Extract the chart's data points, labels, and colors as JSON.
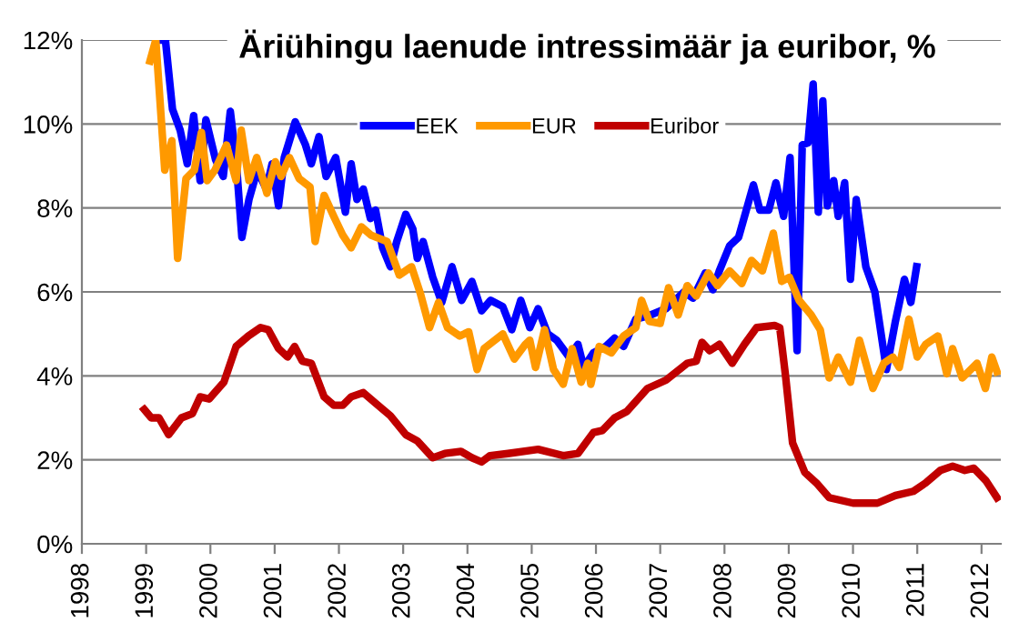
{
  "chart_data": {
    "type": "line",
    "title": "Äriühingu laenude intressimäär ja euribor, %",
    "xlim": [
      1998,
      2012.3
    ],
    "xticks": [
      1998,
      1999,
      2000,
      2001,
      2002,
      2003,
      2004,
      2005,
      2006,
      2007,
      2008,
      2009,
      2010,
      2011,
      2012
    ],
    "ylim": [
      0,
      12
    ],
    "yticks": [
      {
        "value": 0,
        "label": "0%"
      },
      {
        "value": 2,
        "label": "2%"
      },
      {
        "value": 4,
        "label": "4%"
      },
      {
        "value": 6,
        "label": "6%"
      },
      {
        "value": 8,
        "label": "8%"
      },
      {
        "value": 10,
        "label": "10%"
      },
      {
        "value": 12,
        "label": "12%"
      }
    ],
    "grid": "y",
    "legend": "top",
    "marker": "none",
    "line_style": "solid",
    "series": [
      {
        "name": "EEK",
        "color": "#0000ff",
        "x": [
          1999.15,
          1999.3,
          1999.41,
          1999.53,
          1999.64,
          1999.74,
          1999.84,
          1999.93,
          2000.08,
          2000.2,
          2000.31,
          2000.4,
          2000.49,
          2000.6,
          2000.73,
          2000.87,
          2000.96,
          2001.06,
          2001.15,
          2001.32,
          2001.48,
          2001.57,
          2001.69,
          2001.8,
          2001.95,
          2002.1,
          2002.19,
          2002.28,
          2002.38,
          2002.49,
          2002.57,
          2002.68,
          2002.8,
          2002.9,
          2003.04,
          2003.15,
          2003.22,
          2003.31,
          2003.46,
          2003.6,
          2003.76,
          2003.91,
          2004.07,
          2004.22,
          2004.36,
          2004.55,
          2004.69,
          2004.83,
          2004.97,
          2005.1,
          2005.25,
          2005.39,
          2005.58,
          2005.72,
          2005.81,
          2005.96,
          2006.15,
          2006.29,
          2006.43,
          2006.62,
          2006.85,
          2007.09,
          2007.37,
          2007.51,
          2007.7,
          2007.82,
          2007.92,
          2008.08,
          2008.22,
          2008.45,
          2008.55,
          2008.69,
          2008.8,
          2008.92,
          2009.02,
          2009.13,
          2009.21,
          2009.3,
          2009.38,
          2009.46,
          2009.53,
          2009.6,
          2009.7,
          2009.77,
          2009.87,
          2009.96,
          2010.05,
          2010.2,
          2010.34,
          2010.52,
          2010.66,
          2010.8,
          2010.9,
          2010.99
        ],
        "values": [
          12.0,
          12.0,
          10.35,
          9.85,
          9.05,
          10.2,
          8.65,
          10.1,
          9.15,
          8.75,
          10.3,
          9.15,
          7.3,
          8.2,
          8.9,
          8.45,
          9.05,
          8.05,
          9.2,
          10.05,
          9.5,
          9.05,
          9.7,
          8.75,
          9.2,
          7.9,
          9.05,
          8.2,
          8.45,
          7.75,
          7.95,
          7.05,
          6.6,
          7.2,
          7.85,
          7.5,
          6.8,
          7.2,
          6.35,
          5.75,
          6.6,
          5.8,
          6.25,
          5.55,
          5.8,
          5.65,
          5.1,
          5.8,
          5.15,
          5.6,
          5.0,
          4.85,
          4.45,
          4.75,
          4.2,
          4.55,
          4.7,
          4.9,
          4.7,
          5.35,
          5.45,
          5.6,
          6.0,
          5.85,
          6.45,
          6.05,
          6.5,
          7.1,
          7.3,
          8.55,
          7.95,
          7.95,
          8.6,
          7.8,
          9.2,
          4.6,
          9.5,
          9.55,
          10.95,
          7.9,
          10.55,
          8.05,
          8.65,
          7.8,
          8.6,
          6.3,
          8.2,
          6.6,
          6.0,
          4.15,
          5.3,
          6.3,
          5.75,
          6.6
        ]
      },
      {
        "name": "EUR",
        "color": "#ff9900",
        "x": [
          1999.06,
          1999.15,
          1999.29,
          1999.4,
          1999.49,
          1999.62,
          1999.75,
          1999.86,
          1999.95,
          2000.07,
          2000.25,
          2000.4,
          2000.48,
          2000.6,
          2000.72,
          2000.88,
          2001.01,
          2001.1,
          2001.23,
          2001.38,
          2001.55,
          2001.63,
          2001.77,
          2001.92,
          2002.06,
          2002.19,
          2002.35,
          2002.5,
          2002.75,
          2002.94,
          2003.13,
          2003.27,
          2003.41,
          2003.55,
          2003.69,
          2003.88,
          2004.02,
          2004.15,
          2004.26,
          2004.55,
          2004.73,
          2004.9,
          2004.97,
          2005.06,
          2005.2,
          2005.34,
          2005.49,
          2005.63,
          2005.77,
          2005.87,
          2005.92,
          2006.05,
          2006.24,
          2006.43,
          2006.62,
          2006.71,
          2006.83,
          2007.0,
          2007.13,
          2007.28,
          2007.42,
          2007.56,
          2007.75,
          2007.89,
          2008.08,
          2008.27,
          2008.42,
          2008.59,
          2008.76,
          2008.89,
          2009.01,
          2009.16,
          2009.35,
          2009.49,
          2009.63,
          2009.77,
          2009.96,
          2010.1,
          2010.31,
          2010.48,
          2010.62,
          2010.72,
          2010.87,
          2011.0,
          2011.13,
          2011.32,
          2011.46,
          2011.55,
          2011.7,
          2011.93,
          2012.06,
          2012.16,
          2012.24
        ],
        "values": [
          11.5,
          12.0,
          8.9,
          9.6,
          6.8,
          8.7,
          8.9,
          9.8,
          8.65,
          8.9,
          9.5,
          8.65,
          9.85,
          8.65,
          9.2,
          8.35,
          9.1,
          8.75,
          9.2,
          8.7,
          8.5,
          7.2,
          8.3,
          7.8,
          7.35,
          7.05,
          7.55,
          7.35,
          7.2,
          6.4,
          6.6,
          5.95,
          5.15,
          5.75,
          5.15,
          4.95,
          5.05,
          4.15,
          4.65,
          5.0,
          4.4,
          4.75,
          4.85,
          4.2,
          5.1,
          4.15,
          3.8,
          4.65,
          3.85,
          4.3,
          3.8,
          4.7,
          4.55,
          4.95,
          5.15,
          5.8,
          5.3,
          5.25,
          6.1,
          5.45,
          6.15,
          5.9,
          6.45,
          6.15,
          6.5,
          6.2,
          6.75,
          6.5,
          7.4,
          6.25,
          6.35,
          5.8,
          5.45,
          5.1,
          3.95,
          4.45,
          3.85,
          4.85,
          3.7,
          4.3,
          4.45,
          4.2,
          5.35,
          4.45,
          4.75,
          4.95,
          4.05,
          4.65,
          3.95,
          4.3,
          3.7,
          4.45,
          4.1
        ]
      },
      {
        "name": "Euribor",
        "color": "#c00000",
        "x": [
          1998.97,
          1999.08,
          1999.2,
          1999.35,
          1999.55,
          1999.72,
          1999.84,
          1999.98,
          2000.21,
          2000.4,
          2000.59,
          2000.78,
          2000.9,
          2001.06,
          2001.2,
          2001.31,
          2001.43,
          2001.57,
          2001.77,
          2001.92,
          2002.06,
          2002.19,
          2002.38,
          2002.57,
          2002.8,
          2003.04,
          2003.22,
          2003.46,
          2003.65,
          2003.9,
          2004.07,
          2004.22,
          2004.35,
          2004.63,
          2005.1,
          2005.49,
          2005.72,
          2005.96,
          2006.1,
          2006.29,
          2006.48,
          2006.8,
          2007.09,
          2007.42,
          2007.56,
          2007.65,
          2007.77,
          2007.92,
          2008.12,
          2008.31,
          2008.5,
          2008.78,
          2008.86,
          2008.95,
          2009.06,
          2009.25,
          2009.43,
          2009.63,
          2010.0,
          2010.38,
          2010.66,
          2010.94,
          2011.13,
          2011.36,
          2011.55,
          2011.74,
          2011.88,
          2012.07,
          2012.24
        ],
        "values": [
          3.2,
          3.0,
          3.0,
          2.6,
          3.0,
          3.1,
          3.5,
          3.45,
          3.85,
          4.7,
          4.95,
          5.15,
          5.1,
          4.65,
          4.45,
          4.7,
          4.35,
          4.3,
          3.5,
          3.3,
          3.3,
          3.5,
          3.6,
          3.35,
          3.05,
          2.6,
          2.45,
          2.05,
          2.15,
          2.2,
          2.05,
          1.95,
          2.1,
          2.15,
          2.25,
          2.1,
          2.15,
          2.65,
          2.7,
          3.0,
          3.15,
          3.7,
          3.9,
          4.3,
          4.35,
          4.8,
          4.6,
          4.75,
          4.3,
          4.75,
          5.15,
          5.2,
          5.15,
          4.0,
          2.4,
          1.7,
          1.45,
          1.1,
          0.97,
          0.97,
          1.15,
          1.25,
          1.45,
          1.75,
          1.85,
          1.75,
          1.8,
          1.5,
          1.1
        ]
      }
    ]
  }
}
